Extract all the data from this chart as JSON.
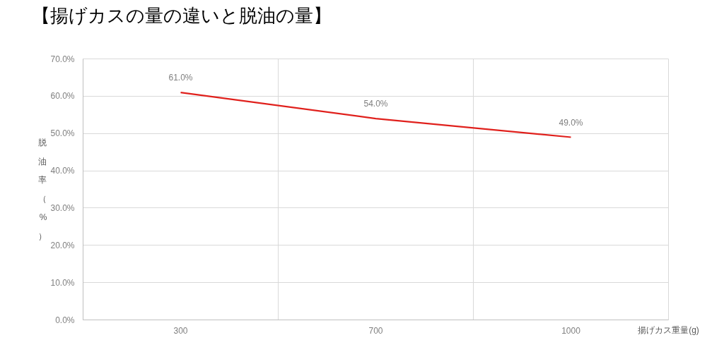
{
  "chart_data": {
    "type": "line",
    "title": "【揚げカスの量の違いと脱油の量】",
    "xlabel": "揚げカス重量(g)",
    "ylabel": "脱油率（%）",
    "categories": [
      "300",
      "700",
      "1000"
    ],
    "series": [
      {
        "color": "#e0201c",
        "values": [
          61.0,
          54.0,
          49.0
        ],
        "value_labels": [
          "61.0%",
          "54.0%",
          "49.0%"
        ]
      }
    ],
    "ylim": [
      0,
      70
    ],
    "yticks": [
      {
        "value": 0,
        "label": "0.0%"
      },
      {
        "value": 10,
        "label": "10.0%"
      },
      {
        "value": 20,
        "label": "20.0%"
      },
      {
        "value": 30,
        "label": "30.0%"
      },
      {
        "value": 40,
        "label": "40.0%"
      },
      {
        "value": 50,
        "label": "50.0%"
      },
      {
        "value": 60,
        "label": "60.0%"
      },
      {
        "value": 70,
        "label": "70.0%"
      }
    ],
    "grid": true
  }
}
